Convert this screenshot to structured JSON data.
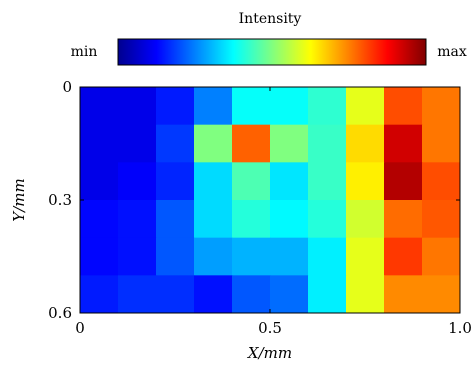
{
  "chart_data": {
    "type": "heatmap",
    "title": "",
    "xlabel": "X/mm",
    "ylabel": "Y/mm",
    "xlim": [
      0,
      1.0
    ],
    "ylim": [
      0,
      0.6
    ],
    "y_inverted": true,
    "x_ticks": [
      {
        "value": 0,
        "label": "0"
      },
      {
        "value": 0.5,
        "label": "0.5"
      },
      {
        "value": 1.0,
        "label": "1.0"
      }
    ],
    "y_ticks": [
      {
        "value": 0,
        "label": "0"
      },
      {
        "value": 0.3,
        "label": "0.3"
      },
      {
        "value": 0.6,
        "label": "0.6"
      }
    ],
    "colorbar": {
      "label": "Intensity",
      "min_label": "min",
      "max_label": "max",
      "colors": [
        "#00008f",
        "#0000ff",
        "#0080ff",
        "#00ffff",
        "#80ff80",
        "#ffff00",
        "#ff8000",
        "#ff0000",
        "#800000"
      ]
    },
    "rows": 6,
    "cols": 10,
    "value_scale": "relative intensity, 0 = min, 1 = max",
    "values": [
      [
        0.1,
        0.1,
        0.15,
        0.25,
        0.38,
        0.38,
        0.42,
        0.6,
        0.8,
        0.76
      ],
      [
        0.1,
        0.1,
        0.18,
        0.5,
        0.78,
        0.5,
        0.43,
        0.66,
        0.92,
        0.76
      ],
      [
        0.1,
        0.12,
        0.16,
        0.34,
        0.45,
        0.35,
        0.43,
        0.64,
        0.95,
        0.8
      ],
      [
        0.13,
        0.14,
        0.21,
        0.34,
        0.41,
        0.37,
        0.41,
        0.58,
        0.77,
        0.79
      ],
      [
        0.13,
        0.14,
        0.21,
        0.28,
        0.3,
        0.3,
        0.36,
        0.6,
        0.82,
        0.76
      ],
      [
        0.15,
        0.17,
        0.17,
        0.14,
        0.21,
        0.23,
        0.36,
        0.6,
        0.74,
        0.74
      ]
    ]
  }
}
